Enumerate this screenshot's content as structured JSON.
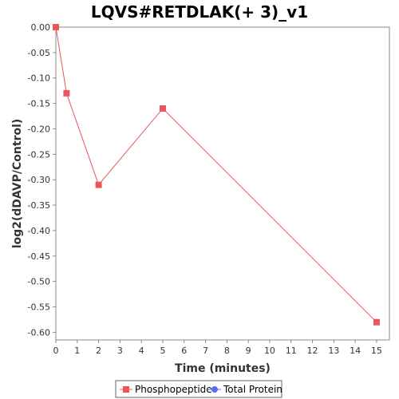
{
  "chart_data": {
    "type": "line",
    "title": "LQVS#RETDLAK(+ 3)_v1",
    "xlabel": "Time (minutes)",
    "ylabel": "log2(dDAVP/Control)",
    "xlim": [
      0,
      15.6
    ],
    "ylim": [
      -0.615,
      0.0
    ],
    "x_ticks": [
      0,
      1,
      2,
      3,
      4,
      5,
      6,
      7,
      8,
      9,
      10,
      11,
      12,
      13,
      14,
      15
    ],
    "y_ticks": [
      0.0,
      -0.05,
      -0.1,
      -0.15,
      -0.2,
      -0.25,
      -0.3,
      -0.35,
      -0.4,
      -0.45,
      -0.5,
      -0.55,
      -0.6
    ],
    "y_tick_labels": [
      "0.00",
      "-0.05",
      "-0.10",
      "-0.15",
      "-0.20",
      "-0.25",
      "-0.30",
      "-0.35",
      "-0.40",
      "-0.45",
      "-0.50",
      "-0.55",
      "-0.60"
    ],
    "grid": false,
    "legend_position": "bottom",
    "series": [
      {
        "name": "Phosphopeptide",
        "color": "#e8575a",
        "marker": "square",
        "x": [
          0,
          0.5,
          2,
          5,
          15
        ],
        "y": [
          0.0,
          -0.13,
          -0.31,
          -0.16,
          -0.58
        ]
      },
      {
        "name": "Total Protein",
        "color": "#5b6cf0",
        "marker": "circle",
        "x": [],
        "y": []
      }
    ]
  }
}
